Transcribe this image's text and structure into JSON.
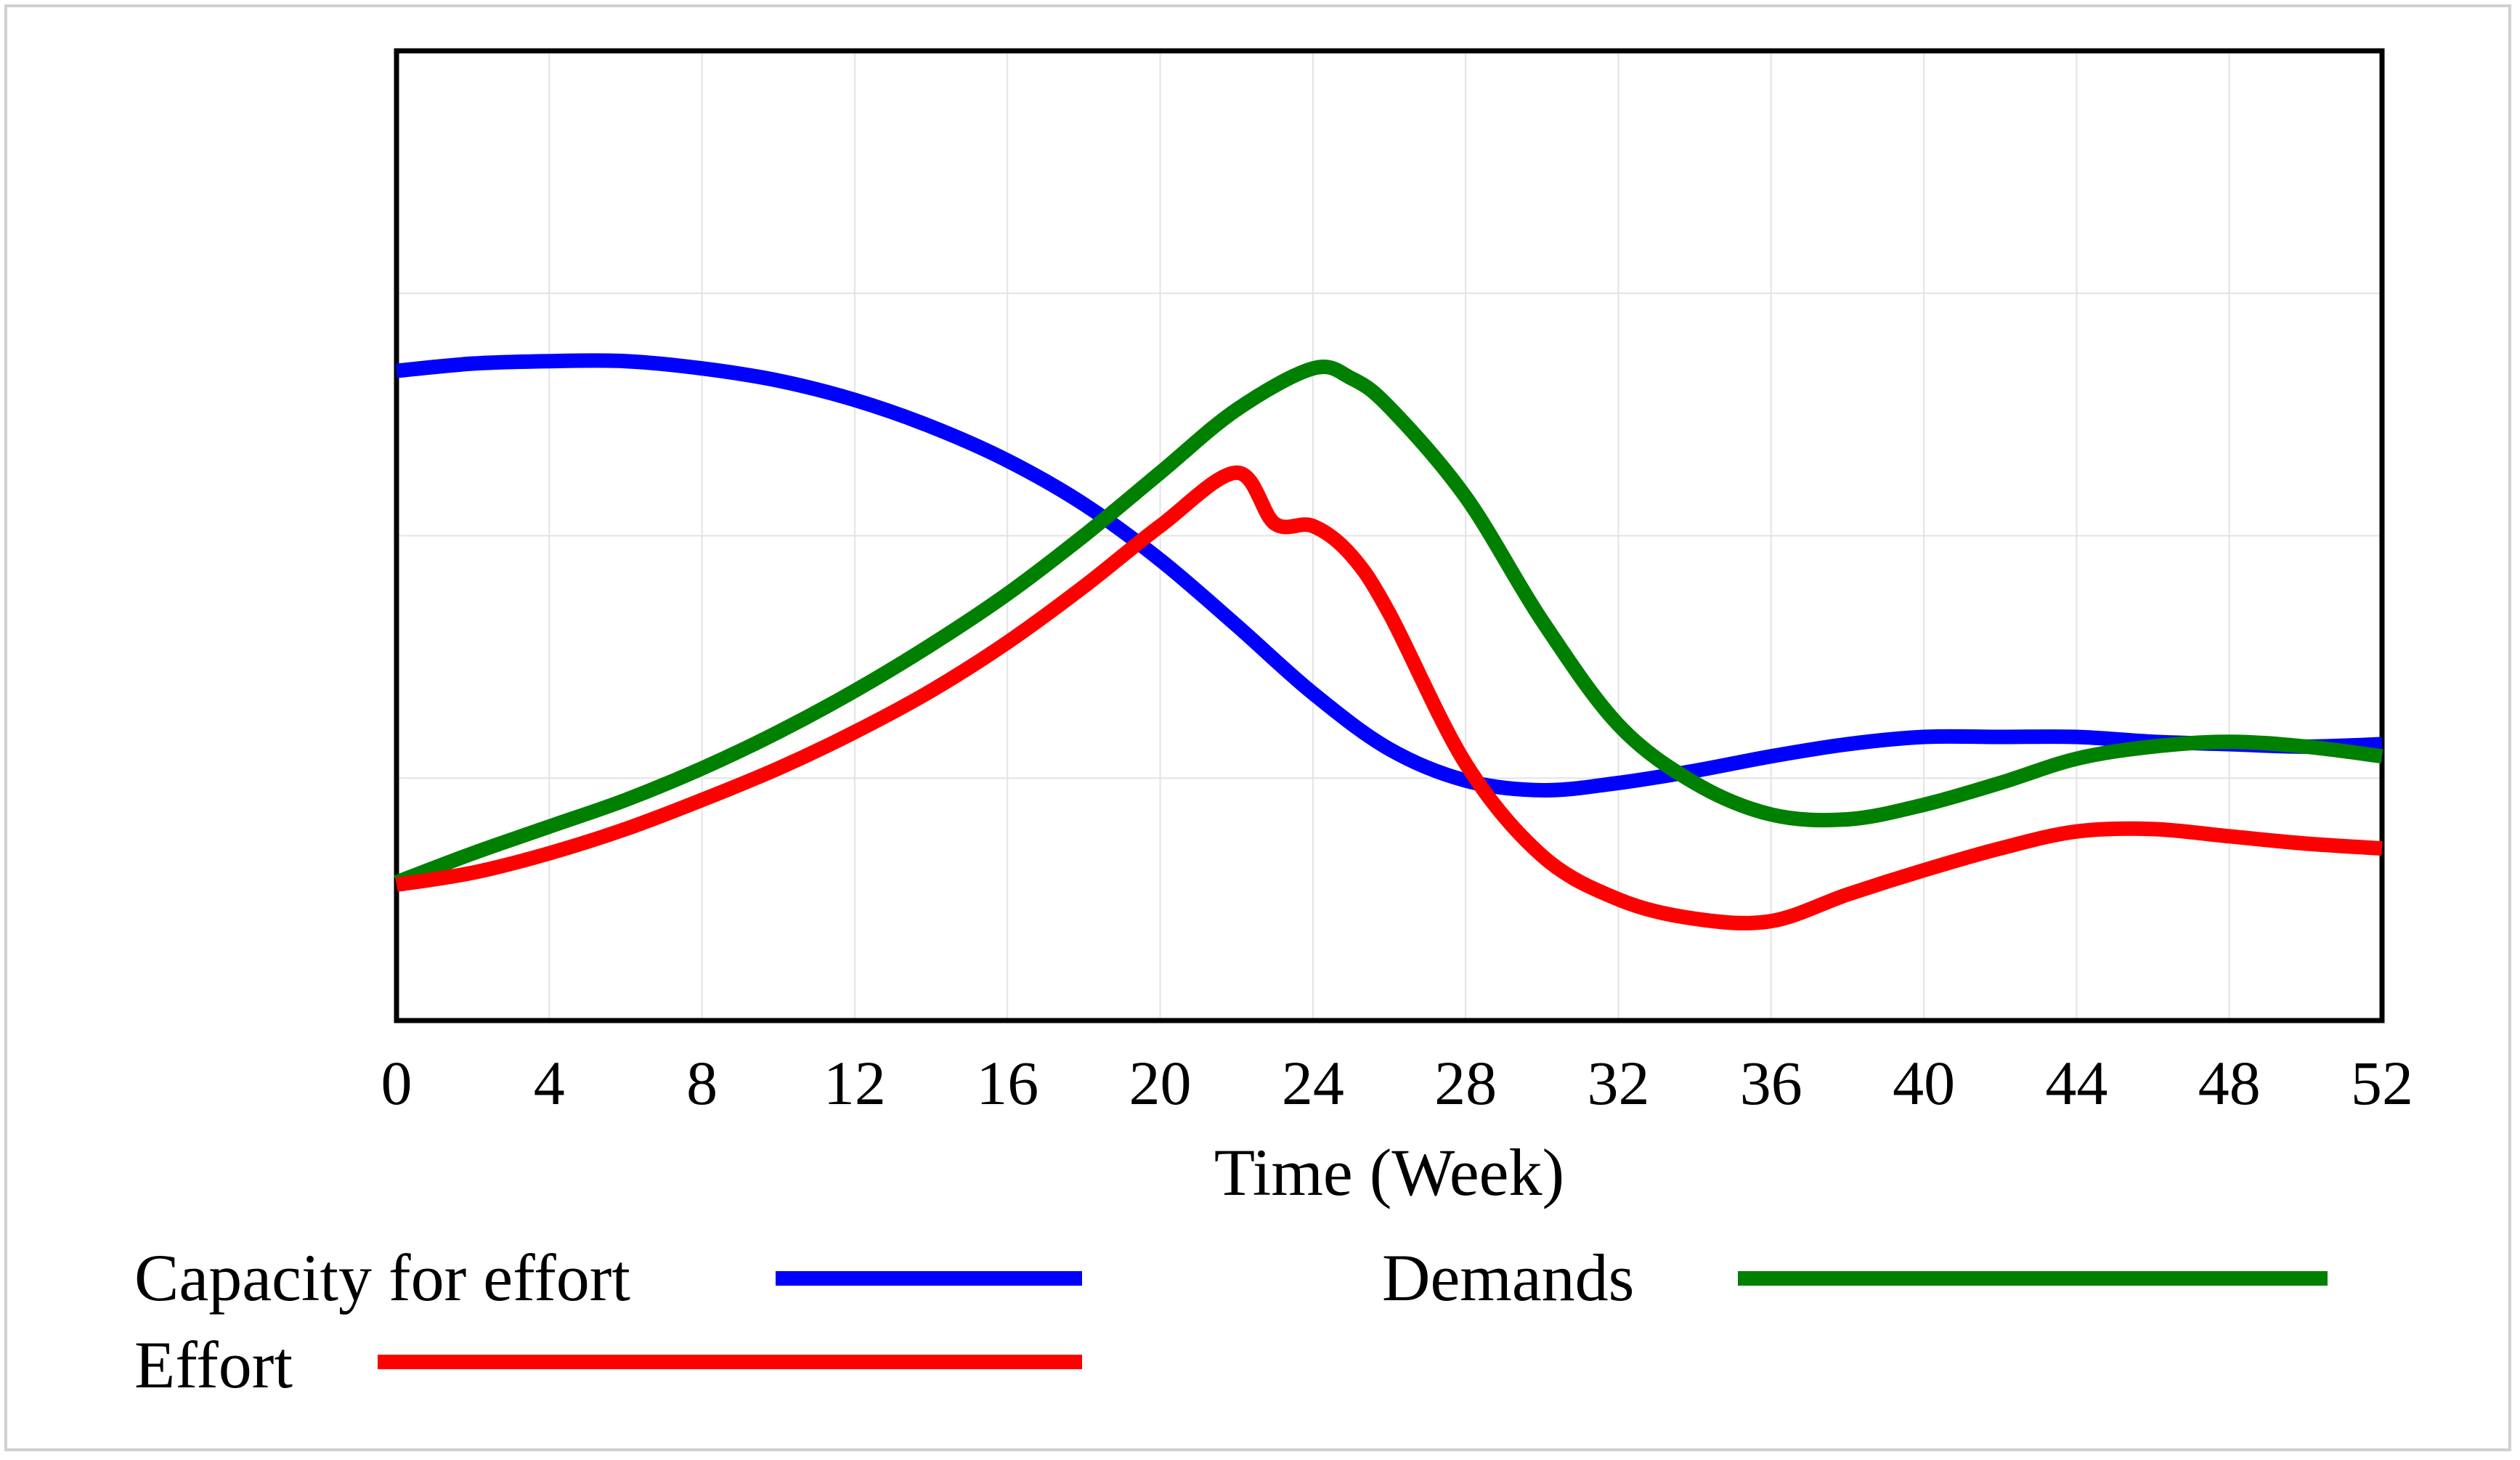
{
  "chart_data": {
    "type": "line",
    "title": "",
    "xlabel": "Time (Week)",
    "ylabel": "",
    "xlim": [
      0,
      52
    ],
    "ylim": [
      0,
      4
    ],
    "x_ticks": [
      "0",
      "4",
      "8",
      "12",
      "16",
      "20",
      "24",
      "28",
      "32",
      "36",
      "40",
      "44",
      "48",
      "52"
    ],
    "grid": true,
    "legend_position": "bottom",
    "series": [
      {
        "name": "Capacity for effort",
        "color": "#0000ff",
        "x": [
          0,
          2,
          4,
          6,
          8,
          10,
          12,
          14,
          16,
          18,
          20,
          22,
          24,
          26,
          28,
          30,
          32,
          34,
          36,
          38,
          40,
          42,
          44,
          46,
          48,
          50,
          52
        ],
        "y": [
          2.68,
          2.71,
          2.72,
          2.72,
          2.69,
          2.64,
          2.56,
          2.45,
          2.31,
          2.13,
          1.9,
          1.63,
          1.35,
          1.12,
          0.99,
          0.95,
          0.98,
          1.03,
          1.09,
          1.14,
          1.17,
          1.17,
          1.17,
          1.15,
          1.14,
          1.13,
          1.14
        ]
      },
      {
        "name": "Demands",
        "color": "#008000",
        "x": [
          0,
          2,
          4,
          6,
          8,
          10,
          12,
          14,
          16,
          18,
          20,
          22,
          24,
          25,
          26,
          28,
          30,
          32,
          34,
          36,
          38,
          40,
          42,
          44,
          46,
          48,
          50,
          52
        ],
        "y": [
          0.57,
          0.69,
          0.8,
          0.91,
          1.04,
          1.19,
          1.36,
          1.55,
          1.76,
          2.0,
          2.26,
          2.52,
          2.69,
          2.65,
          2.53,
          2.16,
          1.65,
          1.22,
          0.98,
          0.85,
          0.83,
          0.89,
          0.98,
          1.08,
          1.13,
          1.15,
          1.13,
          1.09
        ]
      },
      {
        "name": "Effort",
        "color": "#ff0000",
        "x": [
          0,
          2,
          4,
          6,
          8,
          10,
          12,
          14,
          16,
          18,
          20,
          22,
          23,
          24,
          25,
          26,
          28,
          30,
          32,
          34,
          36,
          38,
          40,
          42,
          44,
          46,
          48,
          50,
          52
        ],
        "y": [
          0.56,
          0.61,
          0.69,
          0.79,
          0.91,
          1.04,
          1.19,
          1.36,
          1.56,
          1.79,
          2.04,
          2.26,
          2.05,
          2.04,
          1.92,
          1.68,
          1.06,
          0.68,
          0.5,
          0.42,
          0.41,
          0.52,
          0.62,
          0.71,
          0.78,
          0.79,
          0.76,
          0.73,
          0.71
        ]
      }
    ]
  }
}
